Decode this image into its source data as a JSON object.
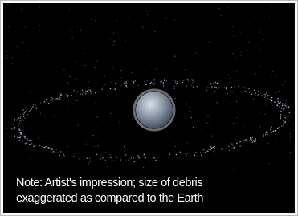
{
  "caption": {
    "lines": [
      "Note: Artist's impression; size of debris",
      "exaggerated as compared to the Earth"
    ]
  }
}
